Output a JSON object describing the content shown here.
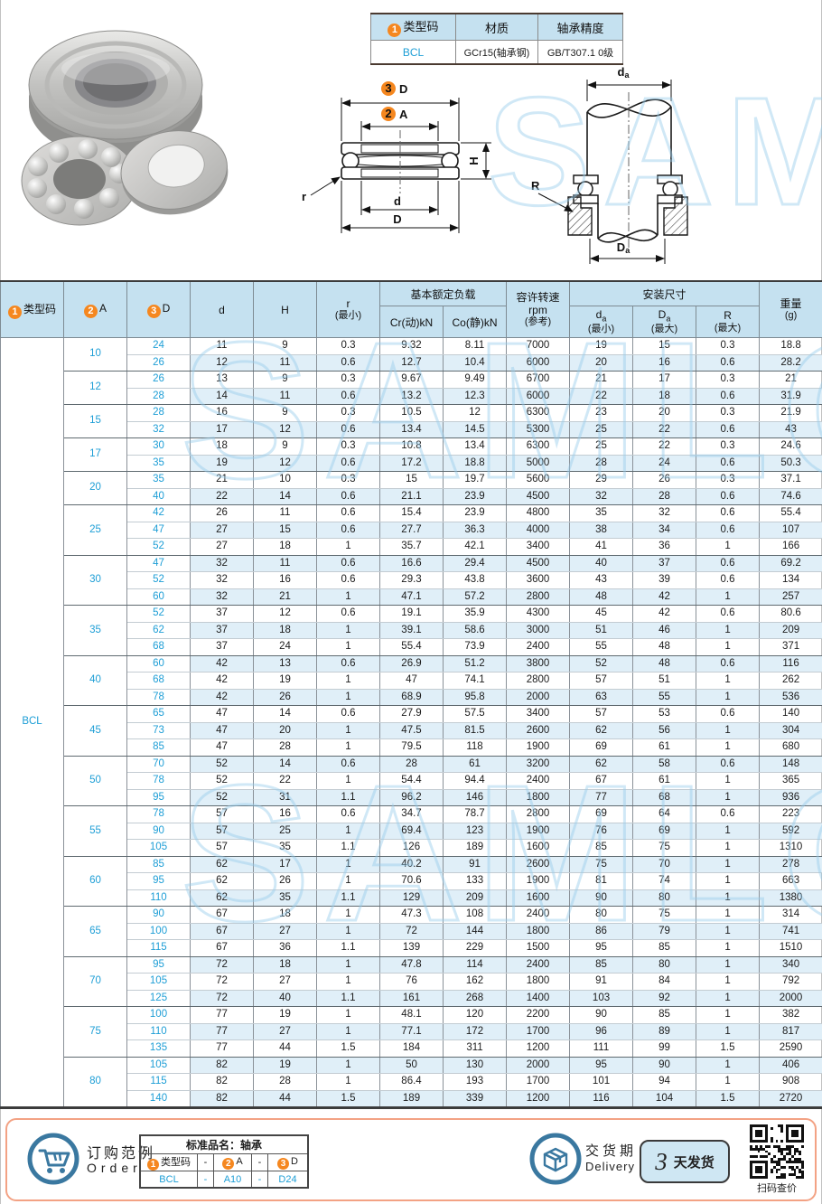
{
  "watermark": "SAMLC",
  "colors": {
    "accent_blue": "#1d9ed6",
    "header_bg": "#c5e1f0",
    "stripe_bg": "#e0eff8",
    "badge_orange": "#f5871f",
    "icon_blue": "#3a78a0",
    "footer_border": "#f3a284"
  },
  "top_info_table": {
    "headers": {
      "type_code": {
        "badge": "1",
        "text": "类型码"
      },
      "material": "材质",
      "precision": "轴承精度"
    },
    "values": {
      "type_code": "BCL",
      "material": "GCr15(轴承钢)",
      "precision": "GB/T307.1 0级"
    }
  },
  "diagrams": {
    "front": {
      "outer_dia_badge": "3",
      "outer_dia": "D",
      "inner_dia_badge": "2",
      "inner_dia": "A",
      "height": "H",
      "fillet": "r",
      "bore": "d",
      "outer": "D"
    },
    "mount": {
      "shaft_dia_main": "d",
      "shaft_dia_sub": "a",
      "housing_dia_main": "D",
      "housing_dia_sub": "a",
      "corner": "R"
    }
  },
  "main_table": {
    "col_headers": {
      "type_code": {
        "badge": "1",
        "text": "类型码"
      },
      "a": {
        "badge": "2",
        "text": "A"
      },
      "d_outer": {
        "badge": "3",
        "text": "D"
      },
      "d": "d",
      "h": "H",
      "r": {
        "main": "r",
        "paren": "(最小)"
      },
      "load_group": "基本额定负载",
      "cr": "Cr(动)kN",
      "co": "Co(静)kN",
      "rpm": {
        "l1": "容许转速",
        "l2": "rpm",
        "l3": "(参考)"
      },
      "mount_group": "安装尺寸",
      "da": {
        "main": "d",
        "sub": "a",
        "paren": "(最小)"
      },
      "Da": {
        "main": "D",
        "sub": "a",
        "paren": "(最大)"
      },
      "R": {
        "main": "R",
        "paren": "(最大)"
      },
      "weight": {
        "l1": "重量",
        "l2": "(g)"
      }
    },
    "type_code_value": "BCL",
    "groups": [
      {
        "a": "10",
        "rows": [
          [
            "24",
            "11",
            "9",
            "0.3",
            "9.32",
            "8.11",
            "7000",
            "19",
            "15",
            "0.3",
            "18.8"
          ],
          [
            "26",
            "12",
            "11",
            "0.6",
            "12.7",
            "10.4",
            "6000",
            "20",
            "16",
            "0.6",
            "28.2"
          ]
        ]
      },
      {
        "a": "12",
        "rows": [
          [
            "26",
            "13",
            "9",
            "0.3",
            "9.67",
            "9.49",
            "6700",
            "21",
            "17",
            "0.3",
            "21"
          ],
          [
            "28",
            "14",
            "11",
            "0.6",
            "13.2",
            "12.3",
            "6000",
            "22",
            "18",
            "0.6",
            "31.9"
          ]
        ]
      },
      {
        "a": "15",
        "rows": [
          [
            "28",
            "16",
            "9",
            "0.3",
            "10.5",
            "12",
            "6300",
            "23",
            "20",
            "0.3",
            "21.9"
          ],
          [
            "32",
            "17",
            "12",
            "0.6",
            "13.4",
            "14.5",
            "5300",
            "25",
            "22",
            "0.6",
            "43"
          ]
        ]
      },
      {
        "a": "17",
        "rows": [
          [
            "30",
            "18",
            "9",
            "0.3",
            "10.8",
            "13.4",
            "6300",
            "25",
            "22",
            "0.3",
            "24.6"
          ],
          [
            "35",
            "19",
            "12",
            "0.6",
            "17.2",
            "18.8",
            "5000",
            "28",
            "24",
            "0.6",
            "50.3"
          ]
        ]
      },
      {
        "a": "20",
        "rows": [
          [
            "35",
            "21",
            "10",
            "0.3",
            "15",
            "19.7",
            "5600",
            "29",
            "26",
            "0.3",
            "37.1"
          ],
          [
            "40",
            "22",
            "14",
            "0.6",
            "21.1",
            "23.9",
            "4500",
            "32",
            "28",
            "0.6",
            "74.6"
          ]
        ]
      },
      {
        "a": "25",
        "rows": [
          [
            "42",
            "26",
            "11",
            "0.6",
            "15.4",
            "23.9",
            "4800",
            "35",
            "32",
            "0.6",
            "55.4"
          ],
          [
            "47",
            "27",
            "15",
            "0.6",
            "27.7",
            "36.3",
            "4000",
            "38",
            "34",
            "0.6",
            "107"
          ],
          [
            "52",
            "27",
            "18",
            "1",
            "35.7",
            "42.1",
            "3400",
            "41",
            "36",
            "1",
            "166"
          ]
        ]
      },
      {
        "a": "30",
        "rows": [
          [
            "47",
            "32",
            "11",
            "0.6",
            "16.6",
            "29.4",
            "4500",
            "40",
            "37",
            "0.6",
            "69.2"
          ],
          [
            "52",
            "32",
            "16",
            "0.6",
            "29.3",
            "43.8",
            "3600",
            "43",
            "39",
            "0.6",
            "134"
          ],
          [
            "60",
            "32",
            "21",
            "1",
            "47.1",
            "57.2",
            "2800",
            "48",
            "42",
            "1",
            "257"
          ]
        ]
      },
      {
        "a": "35",
        "rows": [
          [
            "52",
            "37",
            "12",
            "0.6",
            "19.1",
            "35.9",
            "4300",
            "45",
            "42",
            "0.6",
            "80.6"
          ],
          [
            "62",
            "37",
            "18",
            "1",
            "39.1",
            "58.6",
            "3000",
            "51",
            "46",
            "1",
            "209"
          ],
          [
            "68",
            "37",
            "24",
            "1",
            "55.4",
            "73.9",
            "2400",
            "55",
            "48",
            "1",
            "371"
          ]
        ]
      },
      {
        "a": "40",
        "rows": [
          [
            "60",
            "42",
            "13",
            "0.6",
            "26.9",
            "51.2",
            "3800",
            "52",
            "48",
            "0.6",
            "116"
          ],
          [
            "68",
            "42",
            "19",
            "1",
            "47",
            "74.1",
            "2800",
            "57",
            "51",
            "1",
            "262"
          ],
          [
            "78",
            "42",
            "26",
            "1",
            "68.9",
            "95.8",
            "2000",
            "63",
            "55",
            "1",
            "536"
          ]
        ]
      },
      {
        "a": "45",
        "rows": [
          [
            "65",
            "47",
            "14",
            "0.6",
            "27.9",
            "57.5",
            "3400",
            "57",
            "53",
            "0.6",
            "140"
          ],
          [
            "73",
            "47",
            "20",
            "1",
            "47.5",
            "81.5",
            "2600",
            "62",
            "56",
            "1",
            "304"
          ],
          [
            "85",
            "47",
            "28",
            "1",
            "79.5",
            "118",
            "1900",
            "69",
            "61",
            "1",
            "680"
          ]
        ]
      },
      {
        "a": "50",
        "rows": [
          [
            "70",
            "52",
            "14",
            "0.6",
            "28",
            "61",
            "3200",
            "62",
            "58",
            "0.6",
            "148"
          ],
          [
            "78",
            "52",
            "22",
            "1",
            "54.4",
            "94.4",
            "2400",
            "67",
            "61",
            "1",
            "365"
          ],
          [
            "95",
            "52",
            "31",
            "1.1",
            "96.2",
            "146",
            "1800",
            "77",
            "68",
            "1",
            "936"
          ]
        ]
      },
      {
        "a": "55",
        "rows": [
          [
            "78",
            "57",
            "16",
            "0.6",
            "34.7",
            "78.7",
            "2800",
            "69",
            "64",
            "0.6",
            "223"
          ],
          [
            "90",
            "57",
            "25",
            "1",
            "69.4",
            "123",
            "1900",
            "76",
            "69",
            "1",
            "592"
          ],
          [
            "105",
            "57",
            "35",
            "1.1",
            "126",
            "189",
            "1600",
            "85",
            "75",
            "1",
            "1310"
          ]
        ]
      },
      {
        "a": "60",
        "rows": [
          [
            "85",
            "62",
            "17",
            "1",
            "40.2",
            "91",
            "2600",
            "75",
            "70",
            "1",
            "278"
          ],
          [
            "95",
            "62",
            "26",
            "1",
            "70.6",
            "133",
            "1900",
            "81",
            "74",
            "1",
            "663"
          ],
          [
            "110",
            "62",
            "35",
            "1.1",
            "129",
            "209",
            "1600",
            "90",
            "80",
            "1",
            "1380"
          ]
        ]
      },
      {
        "a": "65",
        "rows": [
          [
            "90",
            "67",
            "18",
            "1",
            "47.3",
            "108",
            "2400",
            "80",
            "75",
            "1",
            "314"
          ],
          [
            "100",
            "67",
            "27",
            "1",
            "72",
            "144",
            "1800",
            "86",
            "79",
            "1",
            "741"
          ],
          [
            "115",
            "67",
            "36",
            "1.1",
            "139",
            "229",
            "1500",
            "95",
            "85",
            "1",
            "1510"
          ]
        ]
      },
      {
        "a": "70",
        "rows": [
          [
            "95",
            "72",
            "18",
            "1",
            "47.8",
            "114",
            "2400",
            "85",
            "80",
            "1",
            "340"
          ],
          [
            "105",
            "72",
            "27",
            "1",
            "76",
            "162",
            "1800",
            "91",
            "84",
            "1",
            "792"
          ],
          [
            "125",
            "72",
            "40",
            "1.1",
            "161",
            "268",
            "1400",
            "103",
            "92",
            "1",
            "2000"
          ]
        ]
      },
      {
        "a": "75",
        "rows": [
          [
            "100",
            "77",
            "19",
            "1",
            "48.1",
            "120",
            "2200",
            "90",
            "85",
            "1",
            "382"
          ],
          [
            "110",
            "77",
            "27",
            "1",
            "77.1",
            "172",
            "1700",
            "96",
            "89",
            "1",
            "817"
          ],
          [
            "135",
            "77",
            "44",
            "1.5",
            "184",
            "311",
            "1200",
            "111",
            "99",
            "1.5",
            "2590"
          ]
        ]
      },
      {
        "a": "80",
        "rows": [
          [
            "105",
            "82",
            "19",
            "1",
            "50",
            "130",
            "2000",
            "95",
            "90",
            "1",
            "406"
          ],
          [
            "115",
            "82",
            "28",
            "1",
            "86.4",
            "193",
            "1700",
            "101",
            "94",
            "1",
            "908"
          ],
          [
            "140",
            "82",
            "44",
            "1.5",
            "189",
            "339",
            "1200",
            "116",
            "104",
            "1.5",
            "2720"
          ]
        ]
      }
    ]
  },
  "footer": {
    "order": {
      "title_cn": "订购范例",
      "title_en": "Order",
      "table_title": "标准品名：轴承",
      "label_type": {
        "badge": "1",
        "text": "类型码"
      },
      "label_a": {
        "badge": "2",
        "text": "A"
      },
      "label_d": {
        "badge": "3",
        "text": "D"
      },
      "dash": "-",
      "value_type": "BCL",
      "value_a": "A10",
      "value_d": "D24"
    },
    "delivery": {
      "title_cn": "交货期",
      "title_en": "Delivery",
      "days": "3",
      "days_suffix": "天发货",
      "qr_caption": "扫码查价"
    }
  }
}
